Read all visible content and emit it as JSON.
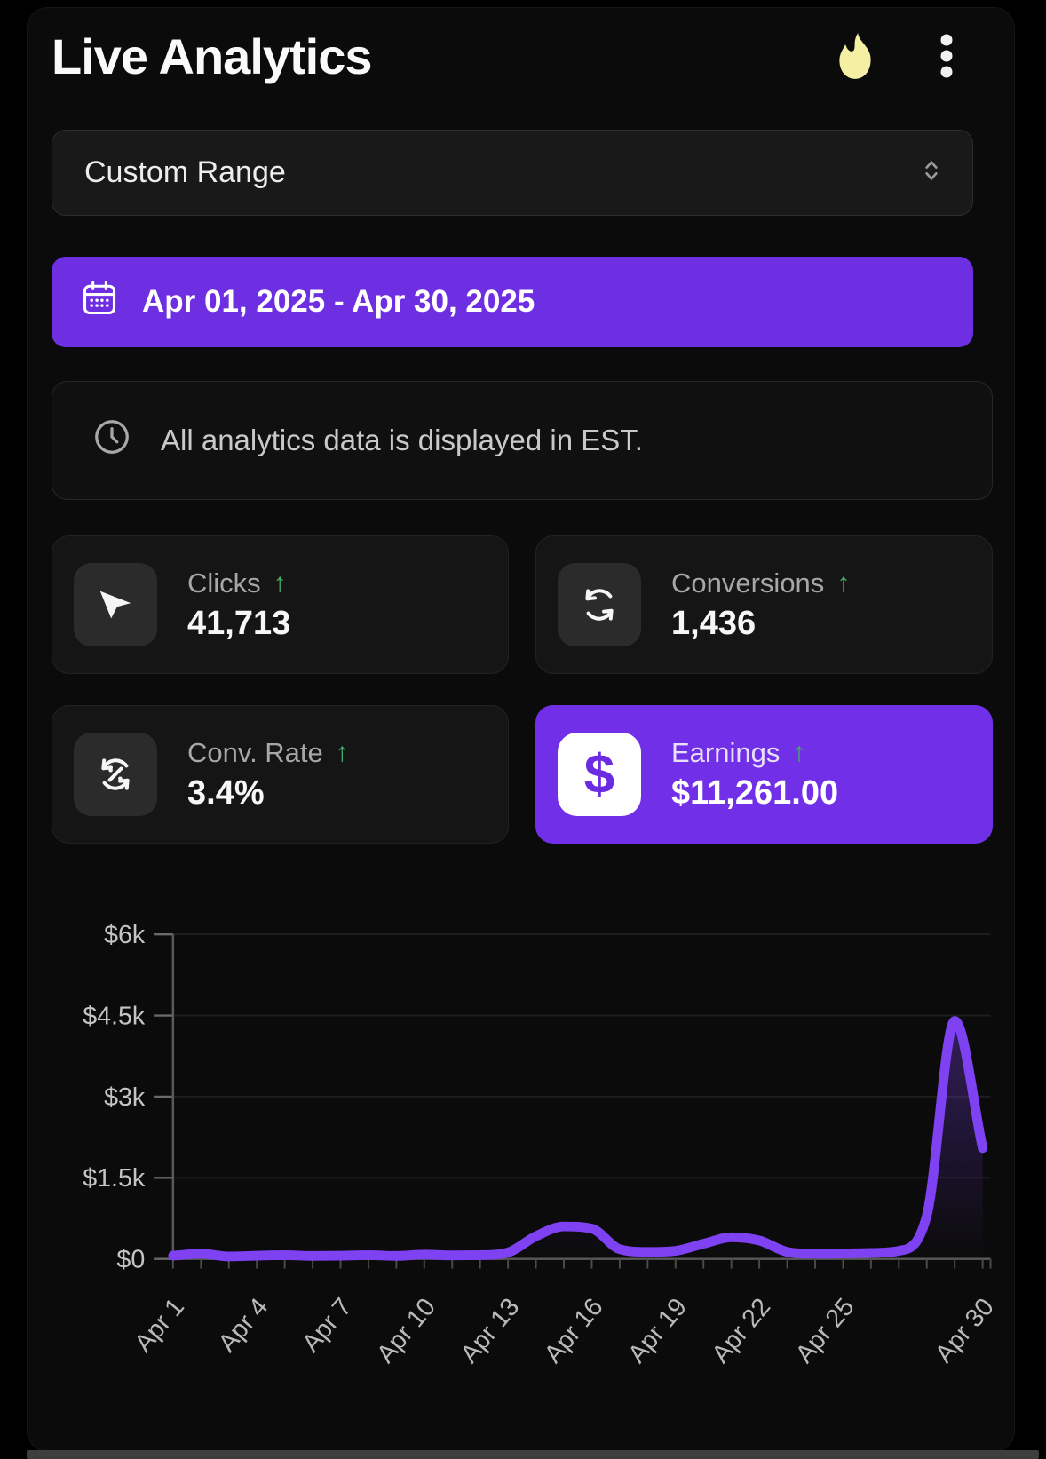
{
  "header": {
    "title": "Live Analytics"
  },
  "range_select": {
    "value": "Custom Range"
  },
  "date_range": {
    "label": "Apr 01, 2025 - Apr 30, 2025"
  },
  "notice": {
    "text": "All analytics data is displayed in EST."
  },
  "stats": [
    {
      "id": "clicks",
      "label": "Clicks",
      "value": "41,713",
      "trend": "up",
      "arrow": "↑",
      "icon": "cursor-icon",
      "highlighted": false
    },
    {
      "id": "conversions",
      "label": "Conversions",
      "value": "1,436",
      "trend": "up",
      "arrow": "↑",
      "icon": "sync-icon",
      "highlighted": false
    },
    {
      "id": "conv_rate",
      "label": "Conv. Rate",
      "value": "3.4%",
      "trend": "up",
      "arrow": "↑",
      "icon": "percent-sync-icon",
      "highlighted": false
    },
    {
      "id": "earnings",
      "label": "Earnings",
      "value": "$11,261.00",
      "trend": "up",
      "arrow": "↑",
      "icon": "dollar-icon",
      "highlighted": true
    }
  ],
  "colors": {
    "accent_purple": "#6e2ee2",
    "card_purple": "#7130e8",
    "line_purple": "#7e42f2",
    "trend_green": "#46b06a",
    "flame_yellow": "#f5efa3",
    "panel_bg": "#0b0b0b"
  },
  "chart_data": {
    "type": "line",
    "title": "",
    "xlabel": "",
    "ylabel": "",
    "legend": "none",
    "grid": true,
    "ylim": [
      0,
      6000
    ],
    "y_tick_values": [
      0,
      1500,
      3000,
      4500,
      6000
    ],
    "y_tick_labels": [
      "$0",
      "$1.5k",
      "$3k",
      "$4.5k",
      "$6k"
    ],
    "x": [
      "Apr 1",
      "Apr 2",
      "Apr 3",
      "Apr 4",
      "Apr 5",
      "Apr 6",
      "Apr 7",
      "Apr 8",
      "Apr 9",
      "Apr 10",
      "Apr 11",
      "Apr 12",
      "Apr 13",
      "Apr 14",
      "Apr 15",
      "Apr 16",
      "Apr 17",
      "Apr 18",
      "Apr 19",
      "Apr 20",
      "Apr 21",
      "Apr 22",
      "Apr 23",
      "Apr 24",
      "Apr 25",
      "Apr 26",
      "Apr 27",
      "Apr 28",
      "Apr 29",
      "Apr 30"
    ],
    "x_labeled_days": [
      1,
      4,
      7,
      10,
      13,
      16,
      19,
      22,
      25,
      30
    ],
    "series": [
      {
        "name": "Earnings ($)",
        "values": [
          60,
          95,
          45,
          60,
          70,
          55,
          60,
          70,
          55,
          80,
          65,
          70,
          120,
          420,
          600,
          560,
          180,
          130,
          150,
          280,
          400,
          340,
          130,
          95,
          100,
          110,
          150,
          800,
          4400,
          2050
        ]
      }
    ]
  }
}
